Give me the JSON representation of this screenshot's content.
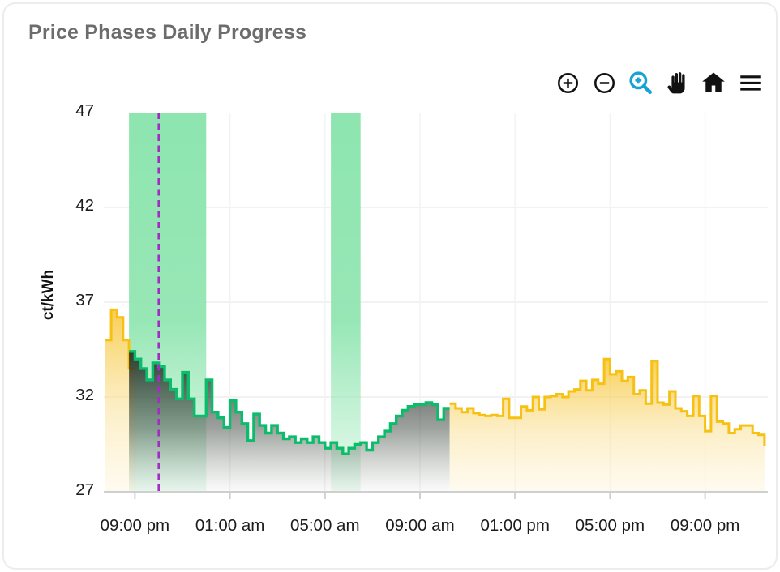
{
  "card": {
    "title": "Price Phases Daily Progress"
  },
  "toolbar": {
    "buttons": [
      {
        "name": "zoom-in",
        "icon": "circle-plus-icon",
        "color": "#111111"
      },
      {
        "name": "zoom-out",
        "icon": "circle-minus-icon",
        "color": "#111111"
      },
      {
        "name": "drag-zoom",
        "icon": "magnifier-plus-icon",
        "color": "#17a3d6"
      },
      {
        "name": "pan",
        "icon": "hand-icon",
        "color": "#111111"
      },
      {
        "name": "reset-view",
        "icon": "home-icon",
        "color": "#111111"
      },
      {
        "name": "menu",
        "icon": "hamburger-icon",
        "color": "#111111"
      }
    ]
  },
  "chart_data": {
    "type": "line",
    "line_style": "step",
    "title": "Price Phases Daily Progress",
    "ylabel": "ct/kWh",
    "ylim": [
      27,
      47
    ],
    "y_ticks": [
      47,
      42,
      37,
      32,
      27
    ],
    "x_ticks": [
      {
        "hour": 21,
        "label": "09:00 pm"
      },
      {
        "hour": 25,
        "label": "01:00 am"
      },
      {
        "hour": 29,
        "label": "05:00 am"
      },
      {
        "hour": 33,
        "label": "09:00 am"
      },
      {
        "hour": 37,
        "label": "01:00 pm"
      },
      {
        "hour": 41,
        "label": "05:00 pm"
      },
      {
        "hour": 45,
        "label": "09:00 pm"
      }
    ],
    "grid": true,
    "legend": "none",
    "start_hour": 19.75,
    "step_hours": 0.25,
    "end_hour": 47.5,
    "end_value": 29.4,
    "values": [
      35.0,
      36.6,
      36.2,
      35.0,
      34.4,
      34.0,
      33.5,
      32.9,
      33.8,
      33.6,
      32.9,
      32.4,
      31.9,
      33.3,
      31.9,
      31.0,
      31.0,
      32.9,
      31.2,
      30.9,
      30.4,
      31.8,
      31.2,
      30.6,
      29.7,
      31.1,
      30.5,
      30.1,
      30.5,
      30.1,
      29.8,
      29.9,
      29.6,
      29.8,
      29.6,
      29.9,
      29.6,
      29.3,
      29.6,
      29.3,
      29.0,
      29.3,
      29.5,
      29.6,
      29.2,
      29.6,
      29.9,
      30.2,
      30.6,
      31.0,
      31.3,
      31.5,
      31.6,
      31.6,
      31.7,
      31.6,
      30.8,
      31.4,
      31.65,
      31.4,
      31.2,
      31.4,
      31.15,
      31.05,
      31.0,
      31.05,
      31.0,
      31.9,
      30.9,
      30.9,
      31.5,
      31.3,
      32.0,
      31.35,
      32.0,
      32.05,
      32.15,
      32.0,
      32.3,
      32.4,
      32.85,
      32.35,
      32.9,
      32.7,
      34.0,
      33.2,
      33.35,
      32.85,
      33.05,
      32.15,
      32.35,
      31.65,
      33.9,
      31.7,
      31.6,
      32.3,
      31.4,
      31.25,
      31.0,
      32.05,
      31.0,
      30.2,
      32.05,
      30.7,
      30.6,
      30.1,
      30.3,
      30.5,
      30.5,
      30.1,
      30.0
    ],
    "cheap_start_index": 4,
    "cheap_end_index": 58,
    "transition_sliver": {
      "from_hour": 20.75,
      "to_hour": 21.0,
      "value": 33.5
    },
    "cheap_time_bands": [
      {
        "from_hour": 20.75,
        "to_hour": 24.0
      },
      {
        "from_hour": 29.25,
        "to_hour": 30.5
      }
    ],
    "now_marker_hour": 22.0,
    "colors": {
      "normal_line": "#f6c113",
      "cheap_line": "#0bbd6b",
      "band": "#8ee5af",
      "now_line": "#a32cc4",
      "grid": "#ededed",
      "grid_vertical": "#f3f3f3",
      "axis": "#cfcfcf",
      "tick_text": "#1c1c1c"
    }
  }
}
